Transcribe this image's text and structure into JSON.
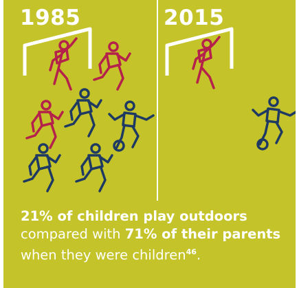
{
  "years": {
    "left": "1985",
    "right": "2015"
  },
  "caption": {
    "part1": "21% of children play outdoors",
    "part2": " compared with ",
    "part3": "71% of their parents",
    "part4": " when they were children",
    "footnote": "46",
    "end": "."
  },
  "colors": {
    "background": "#c4c32a",
    "goal": "#ffffff",
    "figure_red": "#b4214a",
    "figure_blue": "#1f3a62"
  },
  "icons": [
    "goal-icon",
    "goalkeeper-icon",
    "runner-icon",
    "footballer-kicking-icon",
    "ball-icon"
  ]
}
